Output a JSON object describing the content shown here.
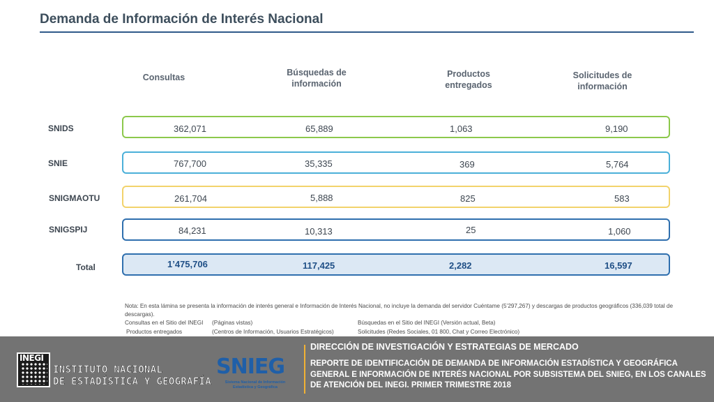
{
  "title": "Demanda de Información de Interés Nacional",
  "columns": {
    "consultas": "Consultas",
    "busquedas": [
      "Búsquedas de",
      "información"
    ],
    "productos": [
      "Productos",
      "entregados"
    ],
    "solicitudes": [
      "Solicitudes de",
      "información"
    ]
  },
  "rows": [
    {
      "label": "SNIDS",
      "consultas": "362,071",
      "busquedas": "65,889",
      "productos": "1,063",
      "solicitudes": "9,190"
    },
    {
      "label": "SNIE",
      "consultas": "767,700",
      "busquedas": "35,335",
      "productos": "369",
      "solicitudes": "5,764"
    },
    {
      "label": "SNIGMAOTU",
      "consultas": "261,704",
      "busquedas": "5,888",
      "productos": "825",
      "solicitudes": "583"
    },
    {
      "label": "SNIGSPIJ",
      "consultas": "84,231",
      "busquedas": "10,313",
      "productos": "25",
      "solicitudes": "1,060"
    }
  ],
  "total": {
    "label": "Total",
    "consultas": "1’475,706",
    "busquedas": "117,425",
    "productos": "2,282",
    "solicitudes": "16,597"
  },
  "notes": {
    "main": "Nota: En esta lámina se presenta la información de interés general e Información de Interés Nacional, no incluye la demanda del servidor Cuéntame (5’297,267) y descargas de productos geográficos (336,039 total de descargas).",
    "consultas_label": "Consultas en el Sitio del INEGI",
    "consultas_desc": "(Páginas vistas)",
    "busquedas_label": "Búsquedas en el Sitio del INEGI (Versión actual, Beta)",
    "productos_label": "Productos entregados",
    "productos_desc": "(Centros de Información, Usuarios Estratégicos)",
    "solicitudes_label": "Solicitudes (Redes Sociales, 01 800, Chat y Correo Electrónico)"
  },
  "footer": {
    "inegi_logo_text": "INEGI",
    "inegi_name_1": "INSTITUTO NACIONAL",
    "inegi_name_2": "DE ESTADÍSTICA Y GEOGRAFÍA",
    "snieg_text": "SNIEG",
    "snieg_sub": "Sistema Nacional de Información Estadística y Geográfica",
    "heading": "DIRECCIÓN DE INVESTIGACIÓN Y ESTRATEGIAS DE MERCADO",
    "report": "REPORTE DE IDENTIFICACIÓN DE DEMANDA DE INFORMACIÓN ESTADÍSTICA Y GEOGRÁFICA GENERAL E INFORMACIÓN DE INTERÉS NACIONAL POR SUBSISTEMA DEL SNIEG, EN LOS CANALES DE ATENCIÓN DEL INEGI. PRIMER TRIMESTRE 2018",
    "colors": {
      "background": "#737373",
      "accent": "#f2b233"
    }
  },
  "row_colors": {
    "SNIDS": "#8cc84b",
    "SNIE": "#4bb0d9",
    "SNIGMAOTU": "#f2d36b",
    "SNIGSPIJ": "#2f6fae",
    "Total": "#2f6fae"
  }
}
